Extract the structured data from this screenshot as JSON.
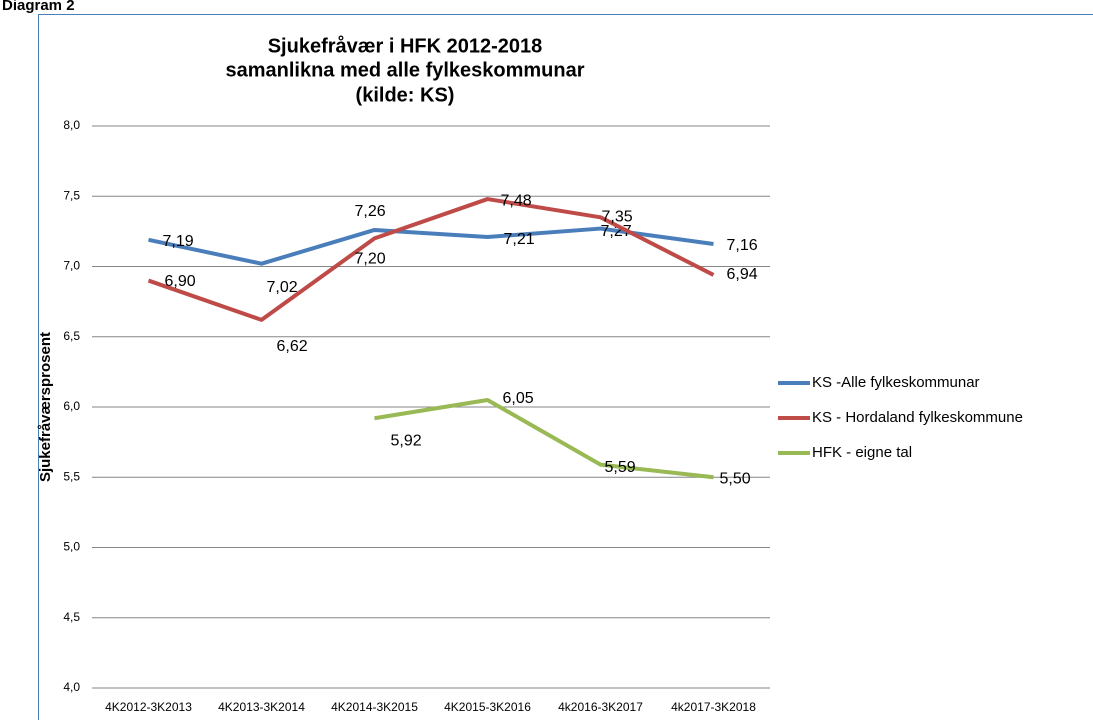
{
  "page": {
    "label": "Diagram 2"
  },
  "chart_data": {
    "type": "line",
    "title": [
      "Sjukefråvær i HFK 2012-2018",
      "samanlikna med alle fylkeskommunar",
      "(kilde: KS)"
    ],
    "y_label": "Sjukefråværsprosent",
    "categories": [
      "4K2012-3K2013",
      "4K2013-3K2014",
      "4K2014-3K2015",
      "4K2015-3K2016",
      "4k2016-3K2017",
      "4k2017-3K2018"
    ],
    "series": [
      {
        "name": "KS -Alle fylkeskommunar",
        "color": "#4a7ebb",
        "values": [
          7.19,
          7.02,
          7.26,
          7.21,
          7.27,
          7.16
        ],
        "value_labels": [
          "7,19",
          "7,02",
          "7,26",
          "7,21",
          "7,27",
          "7,16"
        ]
      },
      {
        "name": "KS - Hordaland fylkeskommune",
        "color": "#be4b48",
        "values": [
          6.9,
          6.62,
          7.2,
          7.48,
          7.35,
          6.94
        ],
        "value_labels": [
          "6,90",
          "6,62",
          "7,20",
          "7,48",
          "7,35",
          "6,94"
        ]
      },
      {
        "name": "HFK - eigne tal",
        "color": "#98b954",
        "values": [
          null,
          null,
          5.92,
          6.05,
          5.59,
          5.5
        ],
        "value_labels": [
          null,
          null,
          "5,92",
          "6,05",
          "5,59",
          "5,50"
        ]
      }
    ],
    "ylim": [
      4.0,
      8.0
    ],
    "yticks": [
      {
        "value": 4.0,
        "label": "4,0"
      },
      {
        "value": 4.5,
        "label": "4,5"
      },
      {
        "value": 5.0,
        "label": "5,0"
      },
      {
        "value": 5.5,
        "label": "5,5"
      },
      {
        "value": 6.0,
        "label": "6,0"
      },
      {
        "value": 6.5,
        "label": "6,5"
      },
      {
        "value": 7.0,
        "label": "7,0"
      },
      {
        "value": 7.5,
        "label": "7,5"
      },
      {
        "value": 8.0,
        "label": "8,0"
      }
    ],
    "grid": true,
    "legend": "right"
  }
}
